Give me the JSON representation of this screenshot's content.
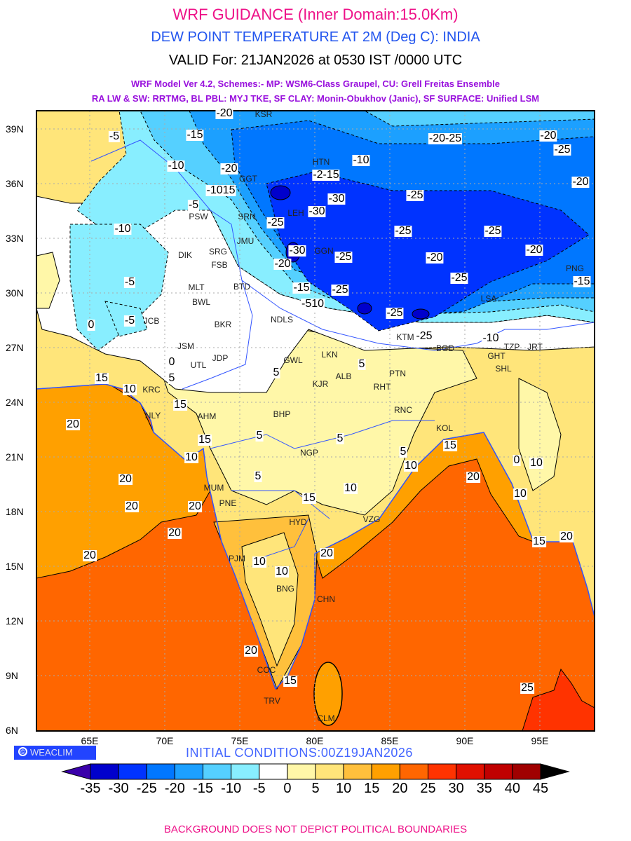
{
  "header": {
    "title": "WRF GUIDANCE (Inner Domain:15.0Km)",
    "subtitle": "DEW POINT TEMPERATURE AT 2M (Deg C): INDIA",
    "valid": "VALID For: 21JAN2026 at 0530 IST /0000 UTC",
    "model_line1": "WRF Model Ver 4.2, Schemes:- MP: WSM6-Class Graupel, CU: Grell Freitas Ensemble",
    "model_line2": "RA LW & SW: RRTMG, BL PBL: MYJ TKE, SF CLAY: Monin-Obukhov (Janic), SF SURFACE: Unified LSM"
  },
  "map": {
    "lat_labels": [
      "39N",
      "36N",
      "33N",
      "30N",
      "27N",
      "24N",
      "21N",
      "18N",
      "15N",
      "12N",
      "9N",
      "6N"
    ],
    "lon_labels": [
      "65E",
      "70E",
      "75E",
      "80E",
      "85E",
      "90E",
      "95E"
    ],
    "cities": [
      "KSR",
      "HTN",
      "GGT",
      "PSW",
      "SRN",
      "SRG",
      "FSB",
      "JMU",
      "DIK",
      "LEH",
      "GGN",
      "MLT",
      "BTD",
      "BWL",
      "BKR",
      "NDLS",
      "JCB",
      "JSM",
      "JDP",
      "UTL",
      "GWL",
      "LKN",
      "ALB",
      "KRC",
      "KJR",
      "PTN",
      "RHT",
      "AHM",
      "NLY",
      "BHP",
      "RNC",
      "KOL",
      "NGP",
      "MUM",
      "PNE",
      "HYD",
      "VZG",
      "PJM",
      "CHN",
      "BNG",
      "COC",
      "TRV",
      "CLM",
      "KTM",
      "BGD",
      "GHT",
      "SHL",
      "TZP",
      "JRT",
      "LSA",
      "PNG"
    ],
    "contour_labels": [
      "-20",
      "-15",
      "-5",
      "-10",
      "-20",
      "-1015",
      "-5",
      "-10",
      "-30",
      "-2-15",
      "-10",
      "-20-25",
      "-20",
      "-25",
      "-20",
      "-25",
      "-30",
      "-25",
      "-25",
      "-25",
      "-30",
      "-25",
      "-20",
      "-20",
      "-20",
      "-25",
      "-15",
      "-15",
      "-25",
      "-510",
      "-25",
      "-5",
      "-5",
      "-25",
      "-10",
      "0",
      "0",
      "5",
      "15",
      "10",
      "15",
      "20",
      "5",
      "5",
      "15",
      "10",
      "20",
      "20",
      "20",
      "20",
      "20",
      "5",
      "5",
      "5",
      "5",
      "10",
      "15",
      "20",
      "10",
      "15",
      "10",
      "10",
      "20",
      "20",
      "15",
      "25",
      "15",
      "20",
      "10",
      "10",
      "0"
    ]
  },
  "footer": {
    "logo_text": "WEACLIM",
    "logo_symbol": "©",
    "initial_conditions": "INITIAL CONDITIONS:00Z19JAN2026",
    "disclaimer": "BACKGROUND DOES NOT DEPICT POLITICAL BOUNDARIES"
  },
  "colorbar": {
    "labels": [
      "-35",
      "-30",
      "-25",
      "-20",
      "-15",
      "-10",
      "-5",
      "0",
      "5",
      "10",
      "15",
      "20",
      "25",
      "30",
      "35",
      "40",
      "45"
    ],
    "colors": [
      "#0000cc",
      "#0033ff",
      "#0077ff",
      "#1ca0ff",
      "#55d0ff",
      "#88eeff",
      "#ffffff",
      "#fff7a8",
      "#ffe57a",
      "#ffc03c",
      "#ffa000",
      "#ff6600",
      "#ff3300",
      "#e01000",
      "#c00000",
      "#a00000"
    ],
    "under_color": "#3a00aa",
    "over_color": "#000000"
  }
}
